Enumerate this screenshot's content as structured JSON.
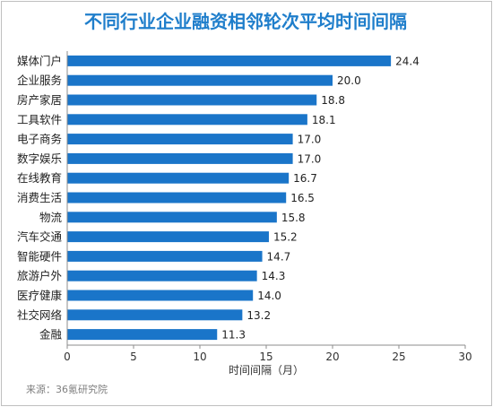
{
  "chart_data": {
    "type": "bar",
    "orientation": "horizontal",
    "title": "不同行业企业融资相邻轮次平均时间间隔",
    "xlabel": "时间间隔（月）",
    "ylabel": "",
    "xlim": [
      0,
      30
    ],
    "xticks": [
      "0",
      "5",
      "10",
      "15",
      "20",
      "25",
      "30"
    ],
    "categories": [
      "媒体门户",
      "企业服务",
      "房产家居",
      "工具软件",
      "电子商务",
      "数字娱乐",
      "在线教育",
      "消费生活",
      "物流",
      "汽车交通",
      "智能硬件",
      "旅游户外",
      "医疗健康",
      "社交网络",
      "金融"
    ],
    "values": [
      24.4,
      20.0,
      18.8,
      18.1,
      17.0,
      17.0,
      16.7,
      16.5,
      15.8,
      15.2,
      14.7,
      14.3,
      14.0,
      13.2,
      11.3
    ],
    "value_labels": [
      "24.4",
      "20.0",
      "18.8",
      "18.1",
      "17.0",
      "17.0",
      "16.7",
      "16.5",
      "15.8",
      "15.2",
      "14.7",
      "14.3",
      "14.0",
      "13.2",
      "11.3"
    ],
    "bar_color": "#1a75c9",
    "grid": false,
    "legend": "none"
  },
  "footer": {
    "source": "来源：36氪研究院"
  },
  "colors": {
    "title": "#1f7ecb",
    "axis": "#808080",
    "text": "#222222"
  }
}
